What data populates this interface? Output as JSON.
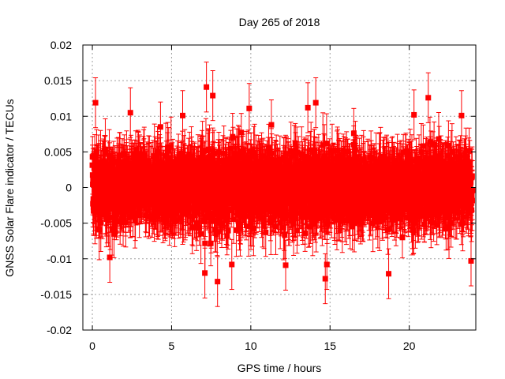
{
  "chart_data": {
    "type": "scatter",
    "title": "Day 265 of 2018",
    "xlabel": "GPS time / hours",
    "ylabel": "GNSS Solar Flare indicator / TECUs",
    "xlim": [
      -0.6,
      24.2
    ],
    "ylim": [
      -0.02,
      0.02
    ],
    "x_ticks": [
      0,
      5,
      10,
      15,
      20
    ],
    "y_ticks": [
      -0.02,
      -0.015,
      -0.01,
      -0.005,
      0,
      0.005,
      0.01,
      0.015,
      0.02
    ],
    "x_tick_labels": [
      "0",
      "5",
      "10",
      "15",
      "20"
    ],
    "y_tick_labels": [
      "-0.02",
      "-0.015",
      "-0.01",
      "-0.005",
      "0",
      "0.005",
      "0.01",
      "0.015",
      "0.02"
    ],
    "grid": true,
    "series": [
      {
        "name": "GNSS Solar Flare indicator",
        "color": "#ff0000",
        "marker": "square",
        "error_bars": true,
        "samples": 2880,
        "typical_error": 0.0035,
        "noise_envelope": [
          {
            "x": 0,
            "sigma": 0.004
          },
          {
            "x": 3,
            "sigma": 0.0036
          },
          {
            "x": 5,
            "sigma": 0.0035
          },
          {
            "x": 7,
            "sigma": 0.0046
          },
          {
            "x": 9,
            "sigma": 0.0042
          },
          {
            "x": 11,
            "sigma": 0.004
          },
          {
            "x": 13,
            "sigma": 0.0042
          },
          {
            "x": 15,
            "sigma": 0.0039
          },
          {
            "x": 17,
            "sigma": 0.0034
          },
          {
            "x": 19,
            "sigma": 0.0037
          },
          {
            "x": 21,
            "sigma": 0.0039
          },
          {
            "x": 24,
            "sigma": 0.0037
          }
        ],
        "extreme_points": [
          {
            "x": 0.2,
            "y": 0.0119
          },
          {
            "x": 1.1,
            "y": -0.0098
          },
          {
            "x": 2.4,
            "y": 0.0105
          },
          {
            "x": 4.3,
            "y": 0.0085
          },
          {
            "x": 5.7,
            "y": 0.0101
          },
          {
            "x": 7.2,
            "y": 0.0141
          },
          {
            "x": 7.6,
            "y": 0.0129
          },
          {
            "x": 7.1,
            "y": -0.012
          },
          {
            "x": 7.9,
            "y": -0.0132
          },
          {
            "x": 8.8,
            "y": -0.0108
          },
          {
            "x": 9.9,
            "y": 0.0111
          },
          {
            "x": 11.3,
            "y": 0.0088
          },
          {
            "x": 12.2,
            "y": -0.0109
          },
          {
            "x": 13.6,
            "y": 0.0112
          },
          {
            "x": 14.1,
            "y": 0.0119
          },
          {
            "x": 14.7,
            "y": -0.0128
          },
          {
            "x": 14.8,
            "y": -0.0108
          },
          {
            "x": 16.5,
            "y": 0.0076
          },
          {
            "x": 18.7,
            "y": -0.0121
          },
          {
            "x": 20.3,
            "y": 0.0102
          },
          {
            "x": 21.2,
            "y": 0.0126
          },
          {
            "x": 23.3,
            "y": 0.0101
          },
          {
            "x": 23.9,
            "y": -0.0103
          }
        ]
      }
    ]
  }
}
